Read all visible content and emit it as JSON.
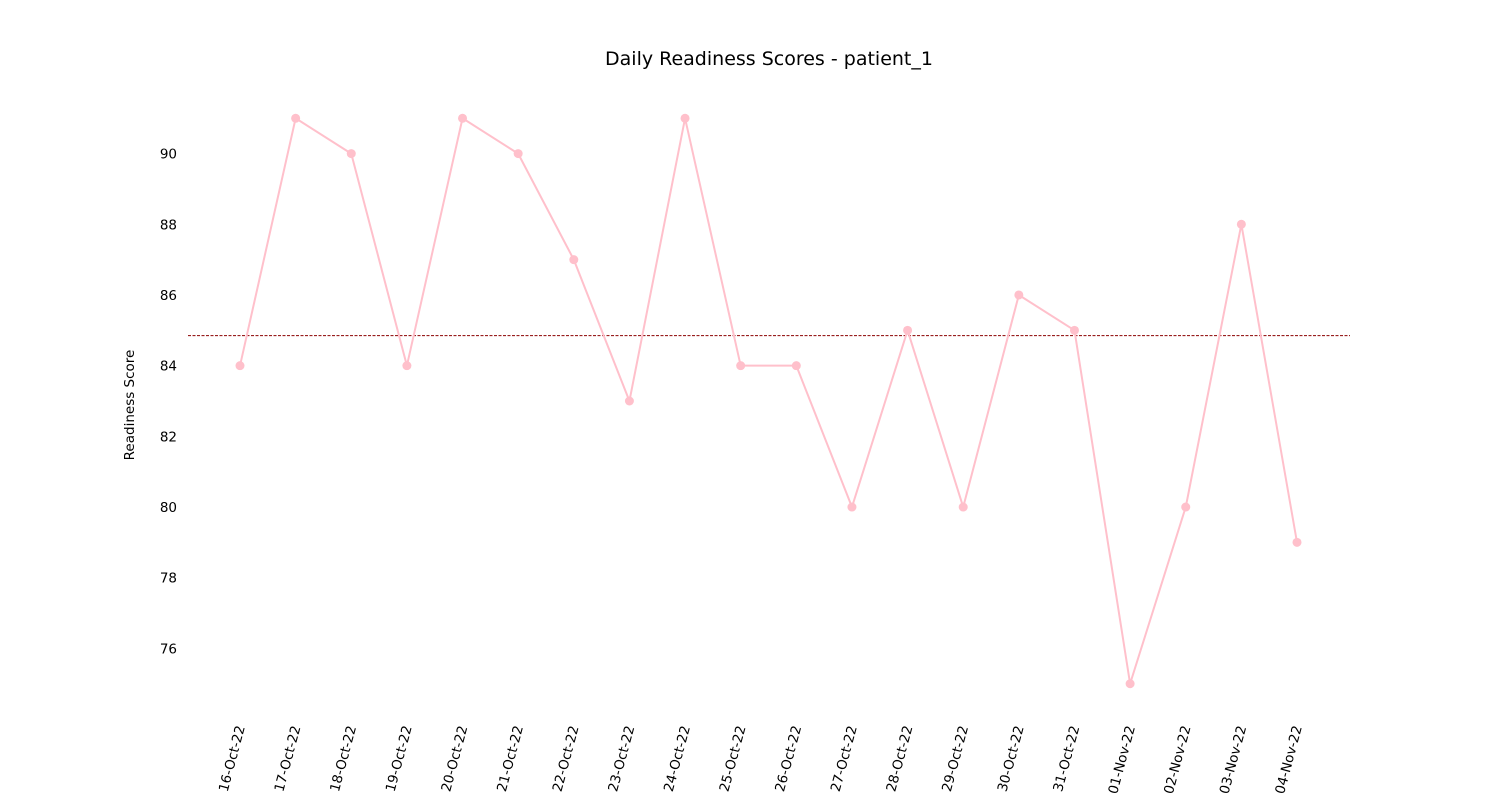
{
  "chart_data": {
    "type": "line",
    "title": "Daily Readiness Scores - patient_1",
    "xlabel": "",
    "ylabel": "Readiness Score",
    "categories": [
      "16-Oct-22",
      "17-Oct-22",
      "18-Oct-22",
      "19-Oct-22",
      "20-Oct-22",
      "21-Oct-22",
      "22-Oct-22",
      "23-Oct-22",
      "24-Oct-22",
      "25-Oct-22",
      "26-Oct-22",
      "27-Oct-22",
      "28-Oct-22",
      "29-Oct-22",
      "30-Oct-22",
      "31-Oct-22",
      "01-Nov-22",
      "02-Nov-22",
      "03-Nov-22",
      "04-Nov-22"
    ],
    "series": [
      {
        "values": [
          84,
          91,
          90,
          84,
          91,
          90,
          87,
          83,
          91,
          84,
          84,
          80,
          85,
          80,
          86,
          85,
          75,
          80,
          88,
          79
        ]
      }
    ],
    "mean_line": {
      "value": 84.85,
      "color": "#8b0000",
      "style": "dashed"
    },
    "yticks": [
      76,
      78,
      80,
      82,
      84,
      86,
      88,
      90
    ],
    "ylim": [
      74.2,
      91.8
    ],
    "grid": false,
    "legend": "none",
    "line_color": "#ffc0cb",
    "marker_color": "#ffc0cb"
  }
}
